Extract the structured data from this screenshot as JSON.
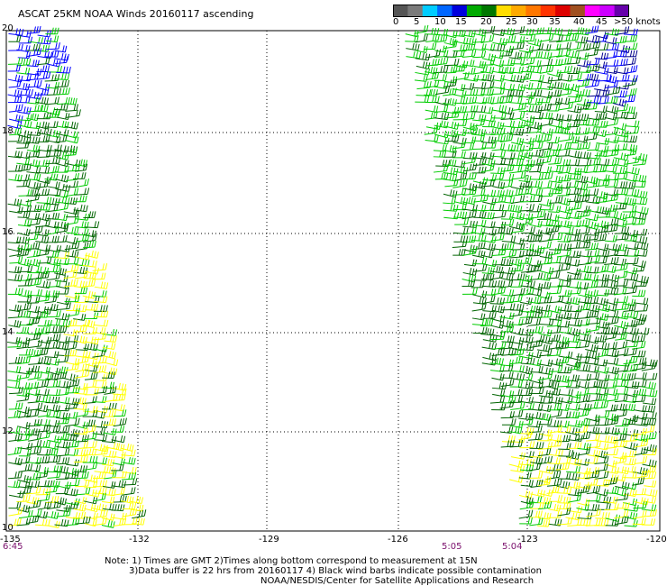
{
  "title": "ASCAT 25KM NOAA Winds 20160117 ascending",
  "legend": {
    "labels": [
      "0",
      "5",
      "10",
      "15",
      "20",
      "25",
      "30",
      "35",
      "40",
      "45",
      ">50 knots"
    ],
    "colors": [
      "#555555",
      "#7a7a7a",
      "#00ccff",
      "#0066ff",
      "#0000dd",
      "#00aa00",
      "#007700",
      "#ffdd00",
      "#ffaa00",
      "#ff7700",
      "#ff3300",
      "#dd0000",
      "#a05020",
      "#ff00ff",
      "#cc00ff",
      "#6600aa"
    ]
  },
  "axes": {
    "lat_labels": [
      "20",
      "18",
      "16",
      "14",
      "12",
      "10"
    ],
    "lon_labels": [
      "-135",
      "-132",
      "-129",
      "-126",
      "-123",
      "-120"
    ]
  },
  "times": [
    "6:45",
    "5:05",
    "5:04"
  ],
  "notes": {
    "line1": "Note: 1) Times are GMT 2)Times along bottom correspond to measurement at 15N",
    "line2": "3)Data buffer is 22 hrs from 20160117 4) Black wind barbs indicate possible contamination",
    "line3": "NOAA/NESDIS/Center for Satellite Applications and Research"
  },
  "wind_colors": {
    "dark_blue": "#00008b",
    "blue": "#0000ff",
    "green": "#00cc00",
    "dark_green": "#006400",
    "yellow": "#ffff00"
  }
}
